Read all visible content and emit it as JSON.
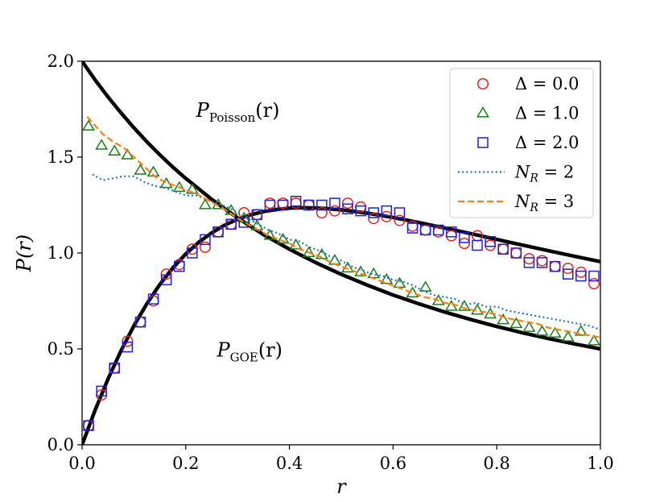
{
  "chart_data": {
    "type": "line",
    "title": "",
    "xlabel": "r",
    "ylabel": "P(r)",
    "xlim": [
      0.0,
      1.0
    ],
    "ylim": [
      0.0,
      2.0
    ],
    "xticks": [
      "0.0",
      "0.2",
      "0.4",
      "0.6",
      "0.8",
      "1.0"
    ],
    "yticks": [
      "0.0",
      "0.5",
      "1.0",
      "1.5",
      "2.0"
    ],
    "xtick_values": [
      0.0,
      0.2,
      0.4,
      0.6,
      0.8,
      1.0
    ],
    "ytick_values": [
      0.0,
      0.5,
      1.0,
      1.5,
      2.0
    ],
    "legend_position": "top-right",
    "annotations": [
      {
        "base": "P",
        "sub": "Poisson",
        "tail": "(r)",
        "at": [
          0.22,
          1.71
        ]
      },
      {
        "base": "P",
        "sub": "GOE",
        "tail": "(r)",
        "at": [
          0.26,
          0.46
        ]
      }
    ],
    "series": [
      {
        "name": "Poisson reference",
        "kind": "line",
        "style": "solid",
        "color": "#000000",
        "legend": false,
        "x": [
          0.0,
          0.025,
          0.05,
          0.075,
          0.1,
          0.125,
          0.15,
          0.175,
          0.2,
          0.25,
          0.3,
          0.35,
          0.4,
          0.45,
          0.5,
          0.55,
          0.6,
          0.65,
          0.7,
          0.75,
          0.8,
          0.85,
          0.9,
          0.95,
          1.0
        ],
        "y": [
          2.0,
          1.903,
          1.814,
          1.731,
          1.653,
          1.58,
          1.512,
          1.448,
          1.389,
          1.28,
          1.183,
          1.096,
          1.02,
          0.951,
          0.889,
          0.833,
          0.781,
          0.735,
          0.692,
          0.653,
          0.617,
          0.584,
          0.554,
          0.526,
          0.5
        ]
      },
      {
        "name": "GOE reference",
        "kind": "line",
        "style": "solid",
        "color": "#000000",
        "legend": false,
        "x": [
          0.0,
          0.025,
          0.05,
          0.075,
          0.1,
          0.125,
          0.15,
          0.175,
          0.2,
          0.225,
          0.25,
          0.275,
          0.3,
          0.325,
          0.35,
          0.375,
          0.4,
          0.425,
          0.45,
          0.475,
          0.5,
          0.525,
          0.55,
          0.575,
          0.6,
          0.65,
          0.7,
          0.75,
          0.8,
          0.85,
          0.9,
          0.95,
          1.0
        ],
        "y": [
          0.0,
          0.18,
          0.343,
          0.49,
          0.621,
          0.736,
          0.836,
          0.922,
          0.995,
          1.056,
          1.105,
          1.145,
          1.176,
          1.199,
          1.216,
          1.227,
          1.234,
          1.236,
          1.235,
          1.231,
          1.225,
          1.217,
          1.208,
          1.197,
          1.185,
          1.159,
          1.13,
          1.101,
          1.071,
          1.041,
          1.012,
          0.983,
          0.955
        ]
      },
      {
        "name": "Δ = 0.0",
        "kind": "marker",
        "marker": "circle",
        "color": "#e8231d",
        "legend": true,
        "x": [
          0.0125,
          0.0375,
          0.0625,
          0.0875,
          0.1125,
          0.1375,
          0.1625,
          0.1875,
          0.2125,
          0.2375,
          0.2625,
          0.2875,
          0.3125,
          0.3375,
          0.3625,
          0.3875,
          0.4125,
          0.4375,
          0.4625,
          0.4875,
          0.5125,
          0.5375,
          0.5625,
          0.5875,
          0.6125,
          0.6375,
          0.6625,
          0.6875,
          0.7125,
          0.7375,
          0.7625,
          0.7875,
          0.8125,
          0.8375,
          0.8625,
          0.8875,
          0.9125,
          0.9375,
          0.9625,
          0.9875
        ],
        "y": [
          0.1,
          0.26,
          0.4,
          0.54,
          0.64,
          0.75,
          0.89,
          0.94,
          1.02,
          1.03,
          1.11,
          1.15,
          1.21,
          1.2,
          1.26,
          1.26,
          1.26,
          1.25,
          1.21,
          1.22,
          1.26,
          1.24,
          1.18,
          1.19,
          1.17,
          1.14,
          1.12,
          1.11,
          1.09,
          1.05,
          1.09,
          1.04,
          1.02,
          1.0,
          0.97,
          0.96,
          0.93,
          0.92,
          0.9,
          0.84
        ]
      },
      {
        "name": "Δ = 1.0",
        "kind": "marker",
        "marker": "triangle",
        "color": "#1a7d1a",
        "legend": true,
        "x": [
          0.0125,
          0.0375,
          0.0625,
          0.0875,
          0.1125,
          0.1375,
          0.1625,
          0.1875,
          0.2125,
          0.2375,
          0.2625,
          0.2875,
          0.3125,
          0.3375,
          0.3625,
          0.3875,
          0.4125,
          0.4375,
          0.4625,
          0.4875,
          0.5125,
          0.5375,
          0.5625,
          0.5875,
          0.6125,
          0.6375,
          0.6625,
          0.6875,
          0.7125,
          0.7375,
          0.7625,
          0.7875,
          0.8125,
          0.8375,
          0.8625,
          0.8875,
          0.9125,
          0.9375,
          0.9625,
          0.9875
        ],
        "y": [
          1.66,
          1.56,
          1.53,
          1.51,
          1.43,
          1.42,
          1.36,
          1.34,
          1.33,
          1.25,
          1.25,
          1.22,
          1.18,
          1.14,
          1.09,
          1.07,
          1.04,
          1.0,
          0.99,
          0.96,
          0.92,
          0.9,
          0.89,
          0.86,
          0.84,
          0.79,
          0.82,
          0.75,
          0.72,
          0.72,
          0.7,
          0.68,
          0.65,
          0.63,
          0.61,
          0.59,
          0.58,
          0.56,
          0.59,
          0.54
        ]
      },
      {
        "name": "Δ = 2.0",
        "kind": "marker",
        "marker": "square",
        "color": "#1f1fd6",
        "legend": true,
        "x": [
          0.0125,
          0.0375,
          0.0625,
          0.0875,
          0.1125,
          0.1375,
          0.1625,
          0.1875,
          0.2125,
          0.2375,
          0.2625,
          0.2875,
          0.3125,
          0.3375,
          0.3625,
          0.3875,
          0.4125,
          0.4375,
          0.4625,
          0.4875,
          0.5125,
          0.5375,
          0.5625,
          0.5875,
          0.6125,
          0.6375,
          0.6625,
          0.6875,
          0.7125,
          0.7375,
          0.7625,
          0.7875,
          0.8125,
          0.8375,
          0.8625,
          0.8875,
          0.9125,
          0.9375,
          0.9625,
          0.9875
        ],
        "y": [
          0.1,
          0.28,
          0.4,
          0.51,
          0.64,
          0.76,
          0.86,
          0.93,
          1.0,
          1.07,
          1.11,
          1.15,
          1.16,
          1.2,
          1.25,
          1.25,
          1.27,
          1.25,
          1.25,
          1.26,
          1.23,
          1.22,
          1.21,
          1.22,
          1.21,
          1.13,
          1.12,
          1.12,
          1.11,
          1.08,
          1.04,
          1.06,
          1.02,
          1.0,
          0.95,
          0.95,
          0.93,
          0.89,
          0.88,
          0.88
        ]
      },
      {
        "name": "N_R = 2",
        "label_base": "N",
        "label_sub": "R",
        "label_tail": "= 2",
        "kind": "line",
        "style": "dotted",
        "color": "#1f77b4",
        "legend": true,
        "x": [
          0.02,
          0.04,
          0.06,
          0.08,
          0.1,
          0.12,
          0.14,
          0.16,
          0.18,
          0.2,
          0.22,
          0.24,
          0.26,
          0.28,
          0.3,
          0.32,
          0.34,
          0.36,
          0.38,
          0.4,
          0.42,
          0.44,
          0.46,
          0.48,
          0.5,
          0.52,
          0.54,
          0.56,
          0.58,
          0.6,
          0.62,
          0.64,
          0.66,
          0.68,
          0.7,
          0.72,
          0.74,
          0.76,
          0.78,
          0.8,
          0.82,
          0.84,
          0.86,
          0.88,
          0.9,
          0.92,
          0.94,
          0.96,
          0.98,
          1.0
        ],
        "y": [
          1.41,
          1.38,
          1.39,
          1.4,
          1.4,
          1.37,
          1.35,
          1.34,
          1.32,
          1.3,
          1.3,
          1.28,
          1.26,
          1.24,
          1.21,
          1.18,
          1.15,
          1.12,
          1.1,
          1.07,
          1.06,
          1.03,
          1.01,
          0.98,
          0.96,
          0.93,
          0.91,
          0.89,
          0.88,
          0.86,
          0.85,
          0.83,
          0.8,
          0.78,
          0.77,
          0.76,
          0.73,
          0.74,
          0.72,
          0.72,
          0.7,
          0.69,
          0.68,
          0.67,
          0.66,
          0.65,
          0.64,
          0.63,
          0.62,
          0.6
        ]
      },
      {
        "name": "N_R = 3",
        "label_base": "N",
        "label_sub": "R",
        "label_tail": "= 3",
        "kind": "line",
        "style": "dashed",
        "color": "#ff7f0e",
        "legend": true,
        "x": [
          0.01,
          0.02,
          0.04,
          0.06,
          0.08,
          0.1,
          0.12,
          0.14,
          0.16,
          0.18,
          0.2,
          0.22,
          0.24,
          0.26,
          0.28,
          0.3,
          0.32,
          0.34,
          0.36,
          0.38,
          0.4,
          0.42,
          0.44,
          0.46,
          0.48,
          0.5,
          0.52,
          0.54,
          0.56,
          0.58,
          0.6,
          0.62,
          0.64,
          0.66,
          0.68,
          0.7,
          0.72,
          0.74,
          0.76,
          0.78,
          0.8,
          0.82,
          0.84,
          0.86,
          0.88,
          0.9,
          0.92,
          0.94,
          0.96,
          0.98,
          1.0
        ],
        "y": [
          1.71,
          1.68,
          1.62,
          1.58,
          1.55,
          1.5,
          1.45,
          1.4,
          1.37,
          1.35,
          1.33,
          1.31,
          1.28,
          1.25,
          1.22,
          1.18,
          1.15,
          1.12,
          1.09,
          1.07,
          1.05,
          1.02,
          1.0,
          0.98,
          0.95,
          0.93,
          0.91,
          0.89,
          0.87,
          0.85,
          0.83,
          0.81,
          0.79,
          0.77,
          0.76,
          0.74,
          0.73,
          0.71,
          0.7,
          0.69,
          0.68,
          0.66,
          0.65,
          0.64,
          0.63,
          0.61,
          0.6,
          0.59,
          0.58,
          0.57,
          0.56
        ]
      }
    ]
  }
}
